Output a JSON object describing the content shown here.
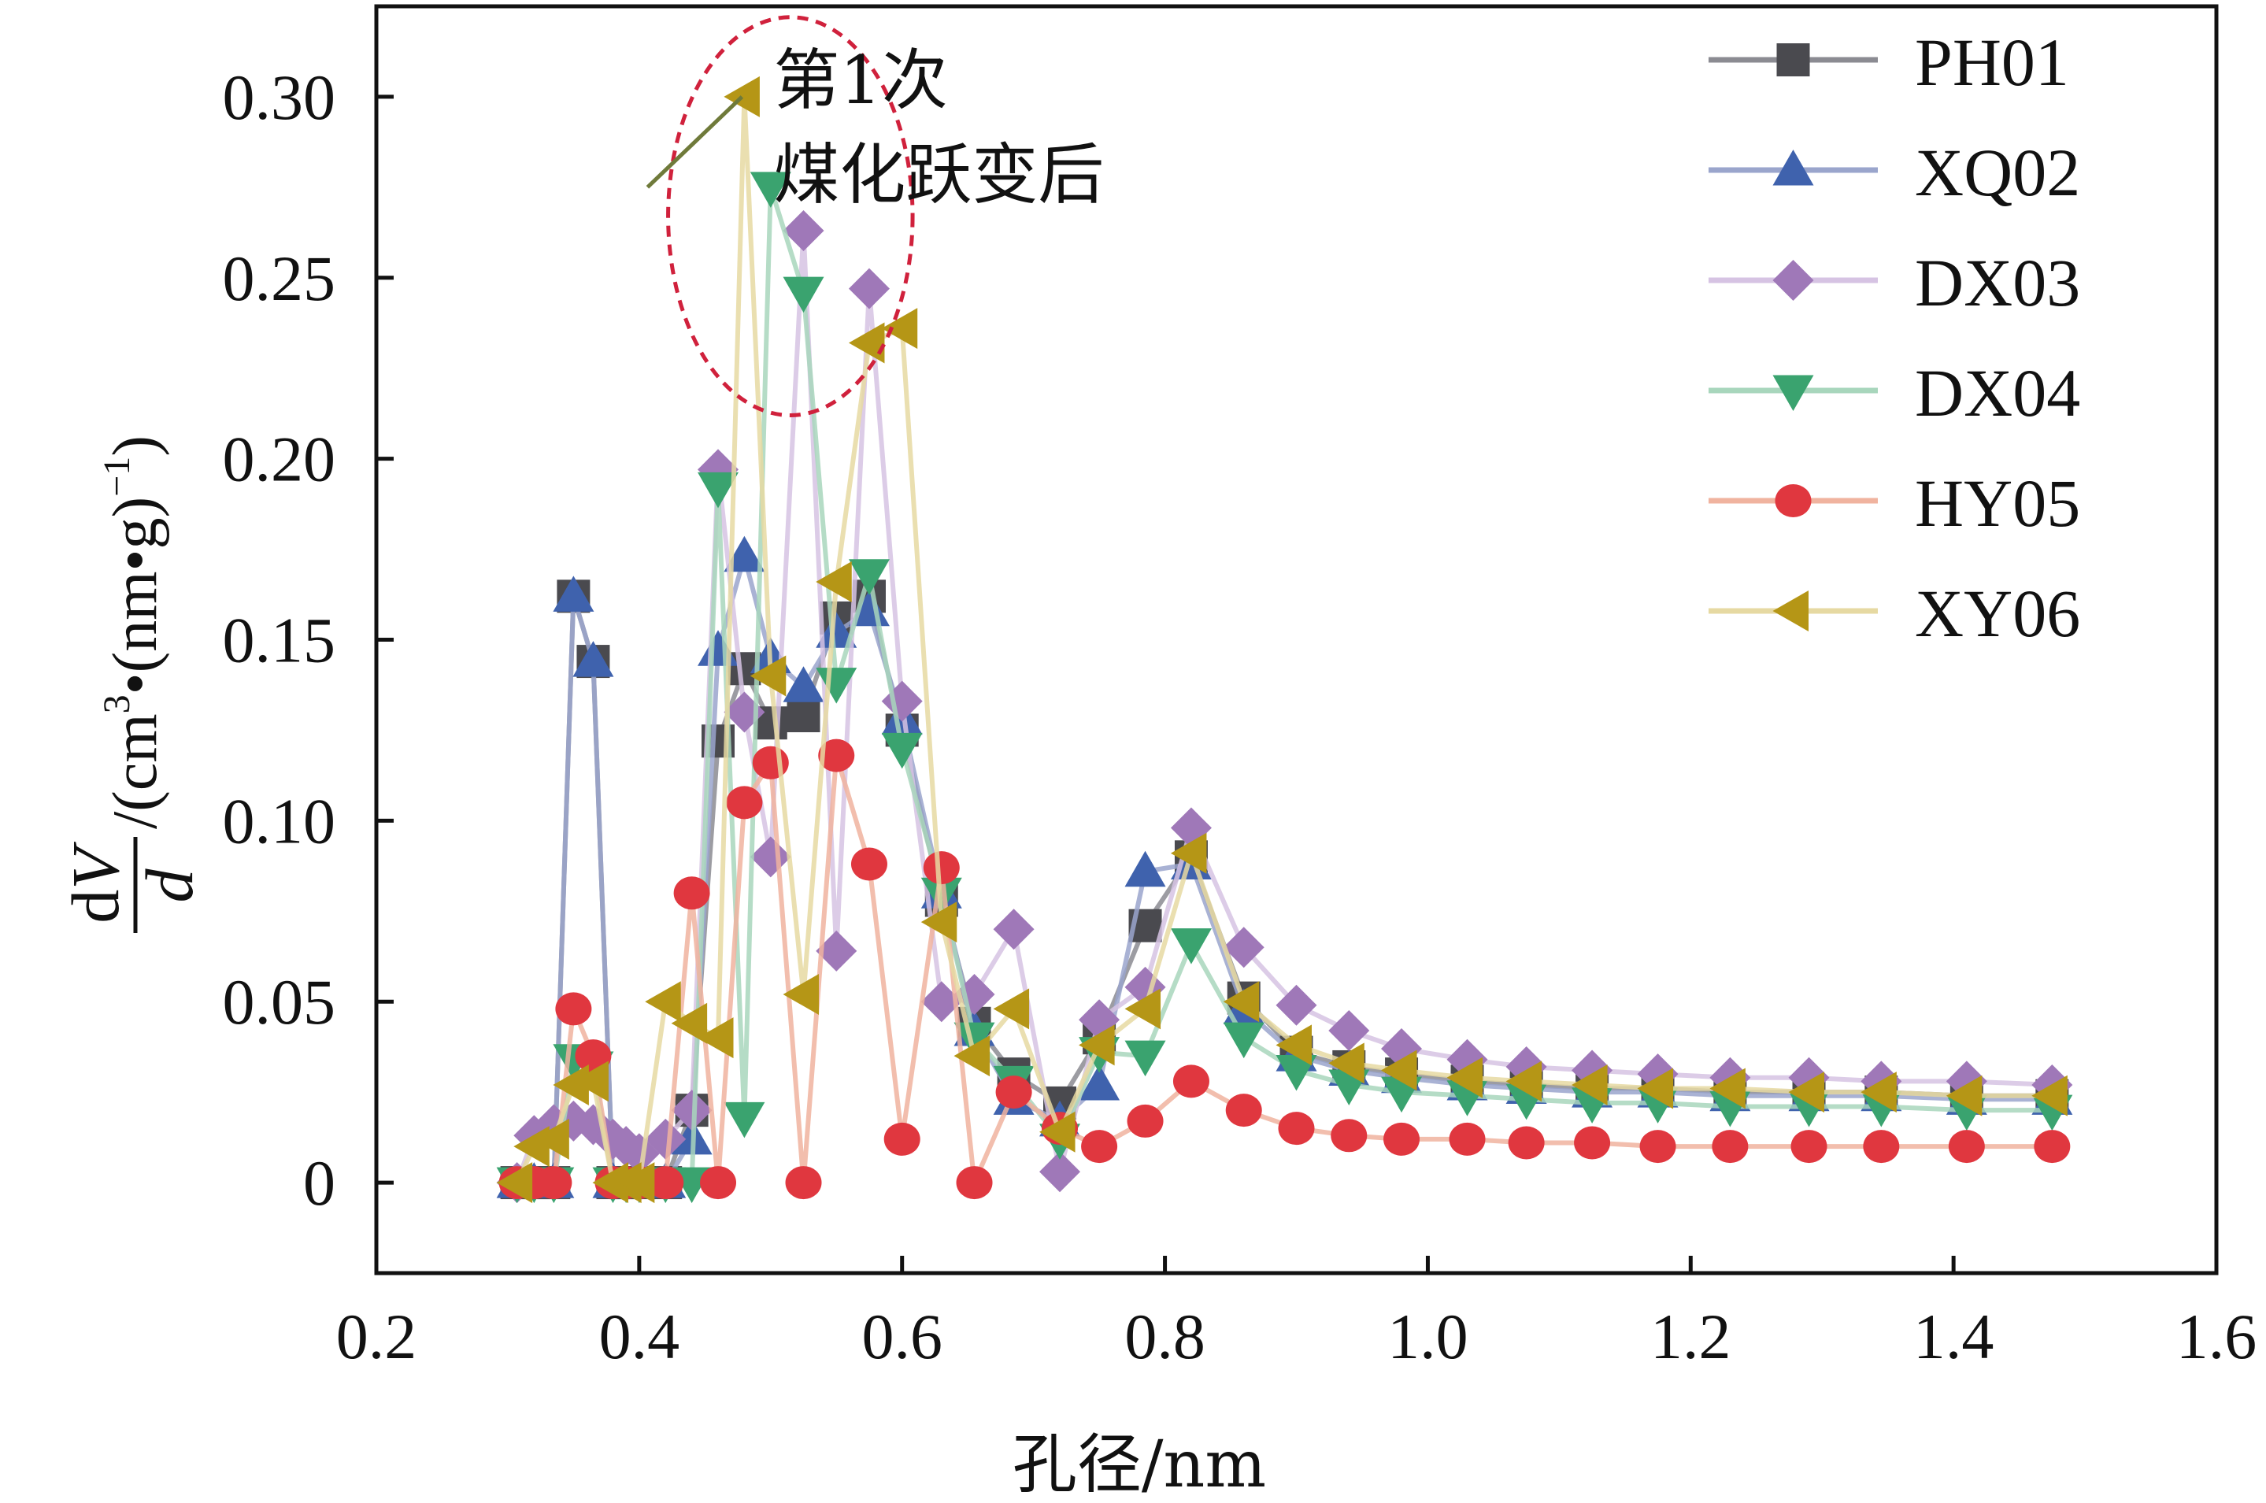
{
  "chart_data": {
    "type": "line",
    "xlabel": "孔径/nm",
    "ylabel": {
      "num_d": "d",
      "num_v": "V",
      "den": "d",
      "rest_a": "/(cm",
      "rest_sup1": "3",
      "rest_b": "•(nm•g)",
      "rest_sup2": "−1",
      "rest_c": ")"
    },
    "xlim": [
      0.2,
      1.6
    ],
    "ylim": [
      -0.025,
      0.325
    ],
    "x_ticks": [
      {
        "value": 0.2,
        "label": "0.2"
      },
      {
        "value": 0.4,
        "label": "0.4"
      },
      {
        "value": 0.6,
        "label": "0.6"
      },
      {
        "value": 0.8,
        "label": "0.8"
      },
      {
        "value": 1.0,
        "label": "1.0"
      },
      {
        "value": 1.2,
        "label": "1.2"
      },
      {
        "value": 1.4,
        "label": "1.4"
      },
      {
        "value": 1.6,
        "label": "1.6"
      }
    ],
    "y_ticks": [
      {
        "value": 0,
        "label": "0"
      },
      {
        "value": 0.05,
        "label": "0.05"
      },
      {
        "value": 0.1,
        "label": "0.10"
      },
      {
        "value": 0.15,
        "label": "0.15"
      },
      {
        "value": 0.2,
        "label": "0.20"
      },
      {
        "value": 0.25,
        "label": "0.25"
      },
      {
        "value": 0.3,
        "label": "0.30"
      }
    ],
    "grid": false,
    "legend_position": "top-right",
    "annotation": {
      "lines": [
        "第1次",
        "煤化跃变后"
      ],
      "ellipse_center": [
        0.515,
        0.267
      ],
      "ellipse_radii": [
        0.093,
        0.055
      ],
      "ellipse_color": "#d0213c",
      "leader_from": [
        0.515,
        0.275
      ],
      "leader_to": [
        0.61,
        0.3
      ],
      "leader_color": "#6f7a3a"
    },
    "series": [
      {
        "name": "PH01",
        "marker": "square",
        "marker_color": "#4a4a4f",
        "line_color": "#8b8b92",
        "points": [
          [
            0.307,
            0.0
          ],
          [
            0.32,
            0.0
          ],
          [
            0.335,
            0.0
          ],
          [
            0.35,
            0.162
          ],
          [
            0.365,
            0.144
          ],
          [
            0.38,
            0.0
          ],
          [
            0.39,
            0.0
          ],
          [
            0.4,
            0.0
          ],
          [
            0.42,
            0.0
          ],
          [
            0.44,
            0.02
          ],
          [
            0.46,
            0.122
          ],
          [
            0.48,
            0.142
          ],
          [
            0.5,
            0.127
          ],
          [
            0.525,
            0.129
          ],
          [
            0.55,
            0.156
          ],
          [
            0.575,
            0.162
          ],
          [
            0.6,
            0.125
          ],
          [
            0.63,
            0.078
          ],
          [
            0.655,
            0.044
          ],
          [
            0.685,
            0.03
          ],
          [
            0.72,
            0.022
          ],
          [
            0.75,
            0.04
          ],
          [
            0.785,
            0.071
          ],
          [
            0.82,
            0.09
          ],
          [
            0.86,
            0.051
          ],
          [
            0.9,
            0.036
          ],
          [
            0.94,
            0.032
          ],
          [
            0.98,
            0.03
          ],
          [
            1.03,
            0.028
          ],
          [
            1.075,
            0.027
          ],
          [
            1.125,
            0.026
          ],
          [
            1.175,
            0.026
          ],
          [
            1.23,
            0.025
          ],
          [
            1.29,
            0.025
          ],
          [
            1.345,
            0.025
          ],
          [
            1.41,
            0.024
          ],
          [
            1.475,
            0.024
          ]
        ]
      },
      {
        "name": "XQ02",
        "marker": "triangle-up",
        "marker_color": "#3f62ad",
        "line_color": "#9aa5cc",
        "points": [
          [
            0.307,
            0.0
          ],
          [
            0.32,
            0.0
          ],
          [
            0.335,
            0.0
          ],
          [
            0.35,
            0.162
          ],
          [
            0.365,
            0.144
          ],
          [
            0.38,
            0.0
          ],
          [
            0.39,
            0.0
          ],
          [
            0.4,
            0.0
          ],
          [
            0.42,
            0.0
          ],
          [
            0.44,
            0.012
          ],
          [
            0.46,
            0.147
          ],
          [
            0.48,
            0.173
          ],
          [
            0.5,
            0.145
          ],
          [
            0.525,
            0.137
          ],
          [
            0.55,
            0.152
          ],
          [
            0.575,
            0.158
          ],
          [
            0.6,
            0.128
          ],
          [
            0.63,
            0.08
          ],
          [
            0.655,
            0.042
          ],
          [
            0.685,
            0.023
          ],
          [
            0.72,
            0.017
          ],
          [
            0.75,
            0.027
          ],
          [
            0.785,
            0.086
          ],
          [
            0.82,
            0.088
          ],
          [
            0.86,
            0.048
          ],
          [
            0.9,
            0.035
          ],
          [
            0.94,
            0.031
          ],
          [
            0.98,
            0.029
          ],
          [
            1.03,
            0.027
          ],
          [
            1.075,
            0.026
          ],
          [
            1.125,
            0.025
          ],
          [
            1.175,
            0.025
          ],
          [
            1.23,
            0.024
          ],
          [
            1.29,
            0.024
          ],
          [
            1.345,
            0.024
          ],
          [
            1.41,
            0.023
          ],
          [
            1.475,
            0.023
          ]
        ]
      },
      {
        "name": "DX03",
        "marker": "diamond",
        "marker_color": "#9f78b8",
        "line_color": "#d6c3e3",
        "points": [
          [
            0.307,
            0.0
          ],
          [
            0.32,
            0.013
          ],
          [
            0.335,
            0.016
          ],
          [
            0.35,
            0.017
          ],
          [
            0.365,
            0.016
          ],
          [
            0.38,
            0.012
          ],
          [
            0.39,
            0.01
          ],
          [
            0.4,
            0.008
          ],
          [
            0.42,
            0.012
          ],
          [
            0.44,
            0.02
          ],
          [
            0.46,
            0.197
          ],
          [
            0.48,
            0.13
          ],
          [
            0.5,
            0.09
          ],
          [
            0.525,
            0.263
          ],
          [
            0.55,
            0.064
          ],
          [
            0.575,
            0.247
          ],
          [
            0.6,
            0.133
          ],
          [
            0.63,
            0.05
          ],
          [
            0.655,
            0.052
          ],
          [
            0.685,
            0.07
          ],
          [
            0.72,
            0.003
          ],
          [
            0.75,
            0.045
          ],
          [
            0.785,
            0.054
          ],
          [
            0.82,
            0.098
          ],
          [
            0.86,
            0.065
          ],
          [
            0.9,
            0.049
          ],
          [
            0.94,
            0.042
          ],
          [
            0.98,
            0.037
          ],
          [
            1.03,
            0.034
          ],
          [
            1.075,
            0.032
          ],
          [
            1.125,
            0.031
          ],
          [
            1.175,
            0.03
          ],
          [
            1.23,
            0.029
          ],
          [
            1.29,
            0.029
          ],
          [
            1.345,
            0.028
          ],
          [
            1.41,
            0.028
          ],
          [
            1.475,
            0.027
          ]
        ]
      },
      {
        "name": "DX04",
        "marker": "triangle-down",
        "marker_color": "#3aa36f",
        "line_color": "#a8d6bc",
        "points": [
          [
            0.307,
            0.0
          ],
          [
            0.32,
            0.0
          ],
          [
            0.335,
            0.0
          ],
          [
            0.35,
            0.034
          ],
          [
            0.365,
            0.032
          ],
          [
            0.38,
            0.0
          ],
          [
            0.39,
            0.0
          ],
          [
            0.4,
            0.0
          ],
          [
            0.42,
            0.0
          ],
          [
            0.44,
            0.0
          ],
          [
            0.46,
            0.192
          ],
          [
            0.48,
            0.018
          ],
          [
            0.5,
            0.275
          ],
          [
            0.525,
            0.246
          ],
          [
            0.55,
            0.138
          ],
          [
            0.575,
            0.168
          ],
          [
            0.6,
            0.12
          ],
          [
            0.63,
            0.08
          ],
          [
            0.655,
            0.04
          ],
          [
            0.685,
            0.028
          ],
          [
            0.72,
            0.012
          ],
          [
            0.75,
            0.036
          ],
          [
            0.785,
            0.035
          ],
          [
            0.82,
            0.066
          ],
          [
            0.86,
            0.04
          ],
          [
            0.9,
            0.031
          ],
          [
            0.94,
            0.027
          ],
          [
            0.98,
            0.025
          ],
          [
            1.03,
            0.024
          ],
          [
            1.075,
            0.023
          ],
          [
            1.125,
            0.022
          ],
          [
            1.175,
            0.022
          ],
          [
            1.23,
            0.021
          ],
          [
            1.29,
            0.021
          ],
          [
            1.345,
            0.021
          ],
          [
            1.41,
            0.02
          ],
          [
            1.475,
            0.02
          ]
        ]
      },
      {
        "name": "HY05",
        "marker": "circle",
        "marker_color": "#e0373f",
        "line_color": "#f0b39f",
        "points": [
          [
            0.307,
            0.0
          ],
          [
            0.32,
            0.0
          ],
          [
            0.335,
            0.0
          ],
          [
            0.35,
            0.048
          ],
          [
            0.365,
            0.035
          ],
          [
            0.38,
            0.0
          ],
          [
            0.39,
            0.0
          ],
          [
            0.4,
            0.0
          ],
          [
            0.42,
            0.0
          ],
          [
            0.44,
            0.08
          ],
          [
            0.46,
            0.0
          ],
          [
            0.48,
            0.105
          ],
          [
            0.5,
            0.116
          ],
          [
            0.525,
            0.0
          ],
          [
            0.55,
            0.118
          ],
          [
            0.575,
            0.088
          ],
          [
            0.6,
            0.012
          ],
          [
            0.63,
            0.087
          ],
          [
            0.655,
            0.0
          ],
          [
            0.685,
            0.025
          ],
          [
            0.72,
            0.015
          ],
          [
            0.75,
            0.01
          ],
          [
            0.785,
            0.017
          ],
          [
            0.82,
            0.028
          ],
          [
            0.86,
            0.02
          ],
          [
            0.9,
            0.015
          ],
          [
            0.94,
            0.013
          ],
          [
            0.98,
            0.012
          ],
          [
            1.03,
            0.012
          ],
          [
            1.075,
            0.011
          ],
          [
            1.125,
            0.011
          ],
          [
            1.175,
            0.01
          ],
          [
            1.23,
            0.01
          ],
          [
            1.29,
            0.01
          ],
          [
            1.345,
            0.01
          ],
          [
            1.41,
            0.01
          ],
          [
            1.475,
            0.01
          ]
        ]
      },
      {
        "name": "XY06",
        "marker": "triangle-left",
        "marker_color": "#b59616",
        "line_color": "#e6d9a2",
        "points": [
          [
            0.307,
            0.0
          ],
          [
            0.32,
            0.01
          ],
          [
            0.335,
            0.012
          ],
          [
            0.35,
            0.027
          ],
          [
            0.365,
            0.028
          ],
          [
            0.38,
            0.0
          ],
          [
            0.39,
            0.0
          ],
          [
            0.4,
            0.0
          ],
          [
            0.42,
            0.05
          ],
          [
            0.44,
            0.044
          ],
          [
            0.46,
            0.04
          ],
          [
            0.48,
            0.3
          ],
          [
            0.5,
            0.14
          ],
          [
            0.525,
            0.052
          ],
          [
            0.55,
            0.166
          ],
          [
            0.575,
            0.232
          ],
          [
            0.6,
            0.236
          ],
          [
            0.63,
            0.072
          ],
          [
            0.655,
            0.035
          ],
          [
            0.685,
            0.048
          ],
          [
            0.72,
            0.014
          ],
          [
            0.75,
            0.038
          ],
          [
            0.785,
            0.048
          ],
          [
            0.82,
            0.091
          ],
          [
            0.86,
            0.05
          ],
          [
            0.9,
            0.038
          ],
          [
            0.94,
            0.033
          ],
          [
            0.98,
            0.031
          ],
          [
            1.03,
            0.029
          ],
          [
            1.075,
            0.028
          ],
          [
            1.125,
            0.027
          ],
          [
            1.175,
            0.026
          ],
          [
            1.23,
            0.026
          ],
          [
            1.29,
            0.025
          ],
          [
            1.345,
            0.025
          ],
          [
            1.41,
            0.024
          ],
          [
            1.475,
            0.024
          ]
        ]
      }
    ]
  }
}
